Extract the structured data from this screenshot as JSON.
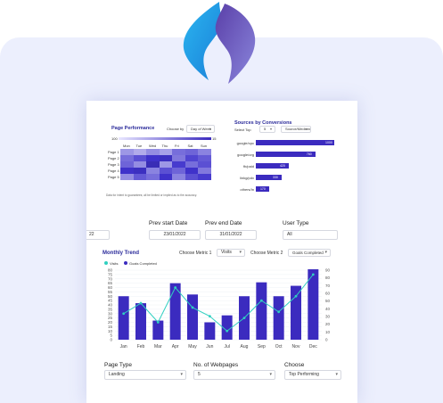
{
  "heatmap": {
    "title": "Page Performance",
    "choose_label": "Choose by",
    "choose_value": "Day of Week",
    "scale_min": "100",
    "scale_max": "15",
    "days": [
      "Mon",
      "Tue",
      "Wed",
      "Thu",
      "Fri",
      "Sat",
      "Sun"
    ],
    "rows": [
      "Page 1",
      "Page 2",
      "Page 3",
      "Page 4",
      "Page 5"
    ],
    "intensity": [
      [
        0.35,
        0.25,
        0.4,
        0.3,
        0.55,
        0.6,
        0.45
      ],
      [
        0.55,
        0.7,
        0.85,
        0.9,
        0.5,
        0.75,
        0.65
      ],
      [
        0.6,
        0.4,
        0.95,
        0.35,
        0.8,
        0.55,
        0.7
      ],
      [
        0.85,
        0.9,
        0.45,
        0.7,
        0.6,
        0.85,
        0.5
      ],
      [
        0.4,
        0.65,
        0.55,
        0.85,
        0.45,
        0.7,
        0.8
      ]
    ],
    "note": "Data for intent to guarantees; all be limited or implied as to the accuracy."
  },
  "sources": {
    "title": "Sources by Conversions",
    "select_label": "Select Top",
    "select_value": "5",
    "source_label": "Source/Medium",
    "bars": [
      {
        "label": "google/cpc",
        "value": 1000
      },
      {
        "label": "google/org",
        "value": 760
      },
      {
        "label": "fb/paid",
        "value": 420
      },
      {
        "label": "linkg/pdx",
        "value": 330
      },
      {
        "label": "others/In",
        "value": 170
      }
    ],
    "bar_labels": [
      "1000",
      "760",
      "420",
      "330",
      "170"
    ]
  },
  "filters": {
    "left_value": "22",
    "prev_start_label": "Prev start Date",
    "prev_start_value": "23/01/2022",
    "prev_end_label": "Prev end Date",
    "prev_end_value": "31/01/2022",
    "user_type_label": "User Type",
    "user_type_value": "All"
  },
  "trend": {
    "title": "Monthly Trend",
    "metric1_label": "Choose Metric 1",
    "metric1_value": "Visits",
    "metric2_label": "Choose Metric 2",
    "metric2_value": "Goals Completed",
    "legend_visits": "Visits",
    "legend_goals": "Goals Completed"
  },
  "chart_data": {
    "type": "bar",
    "categories": [
      "Jan",
      "Feb",
      "Mar",
      "Apr",
      "May",
      "Jun",
      "Jul",
      "Aug",
      "Sep",
      "Oct",
      "Nov",
      "Dec"
    ],
    "series": [
      {
        "name": "Goals Completed",
        "type": "bar",
        "values": [
          50,
          42,
          22,
          65,
          52,
          20,
          28,
          50,
          66,
          50,
          62,
          81
        ]
      },
      {
        "name": "Visits",
        "type": "line",
        "values": [
          30,
          42,
          20,
          60,
          37,
          27,
          10,
          25,
          45,
          32,
          50,
          75
        ]
      }
    ],
    "y_ticks": [
      "0",
      "5",
      "10",
      "15",
      "20",
      "25",
      "30",
      "35",
      "40",
      "45",
      "50",
      "55",
      "60",
      "65",
      "70",
      "75",
      "80"
    ],
    "y2_ticks": [
      "0",
      "10",
      "20",
      "30",
      "40",
      "50",
      "60",
      "70",
      "80",
      "90"
    ],
    "ylim": [
      0,
      80
    ],
    "colors": {
      "bar": "#3b2bbf",
      "line": "#2fd0c0"
    }
  },
  "bottom": {
    "page_type_label": "Page Type",
    "page_type_value": "Landing",
    "webpages_label": "No. of Webpages",
    "webpages_value": "5",
    "choose_label": "Choose",
    "choose_value": "Top Performing"
  }
}
